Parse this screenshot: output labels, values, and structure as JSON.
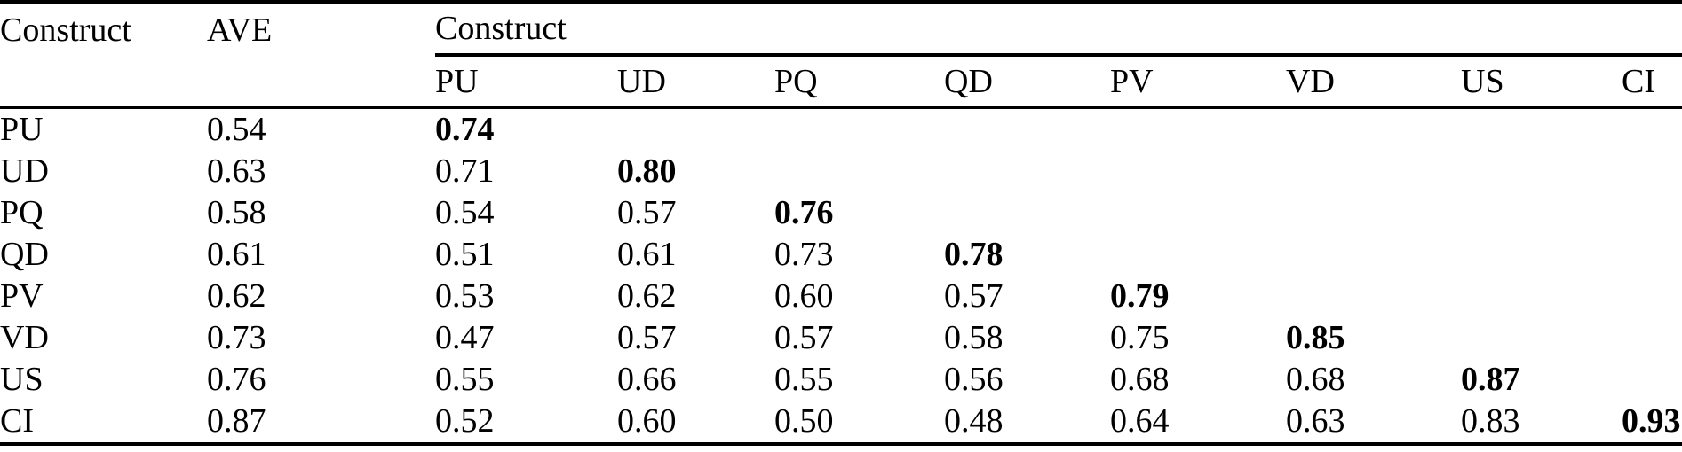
{
  "colors": {
    "text": "#000000",
    "background": "#ffffff",
    "rule": "#000000"
  },
  "table": {
    "header": {
      "construct_col": "Construct",
      "ave_col": "AVE",
      "construct_span": "Construct",
      "columns": [
        "PU",
        "UD",
        "PQ",
        "QD",
        "PV",
        "VD",
        "US",
        "CI"
      ]
    },
    "rows": [
      {
        "construct": "PU",
        "ave": "0.54",
        "values": [
          "0.74"
        ]
      },
      {
        "construct": "UD",
        "ave": "0.63",
        "values": [
          "0.71",
          "0.80"
        ]
      },
      {
        "construct": "PQ",
        "ave": "0.58",
        "values": [
          "0.54",
          "0.57",
          "0.76"
        ]
      },
      {
        "construct": "QD",
        "ave": "0.61",
        "values": [
          "0.51",
          "0.61",
          "0.73",
          "0.78"
        ]
      },
      {
        "construct": "PV",
        "ave": "0.62",
        "values": [
          "0.53",
          "0.62",
          "0.60",
          "0.57",
          "0.79"
        ]
      },
      {
        "construct": "VD",
        "ave": "0.73",
        "values": [
          "0.47",
          "0.57",
          "0.57",
          "0.58",
          "0.75",
          "0.85"
        ]
      },
      {
        "construct": "US",
        "ave": "0.76",
        "values": [
          "0.55",
          "0.66",
          "0.55",
          "0.56",
          "0.68",
          "0.68",
          "0.87"
        ]
      },
      {
        "construct": "CI",
        "ave": "0.87",
        "values": [
          "0.52",
          "0.60",
          "0.50",
          "0.48",
          "0.64",
          "0.63",
          "0.83",
          "0.93"
        ]
      }
    ]
  }
}
